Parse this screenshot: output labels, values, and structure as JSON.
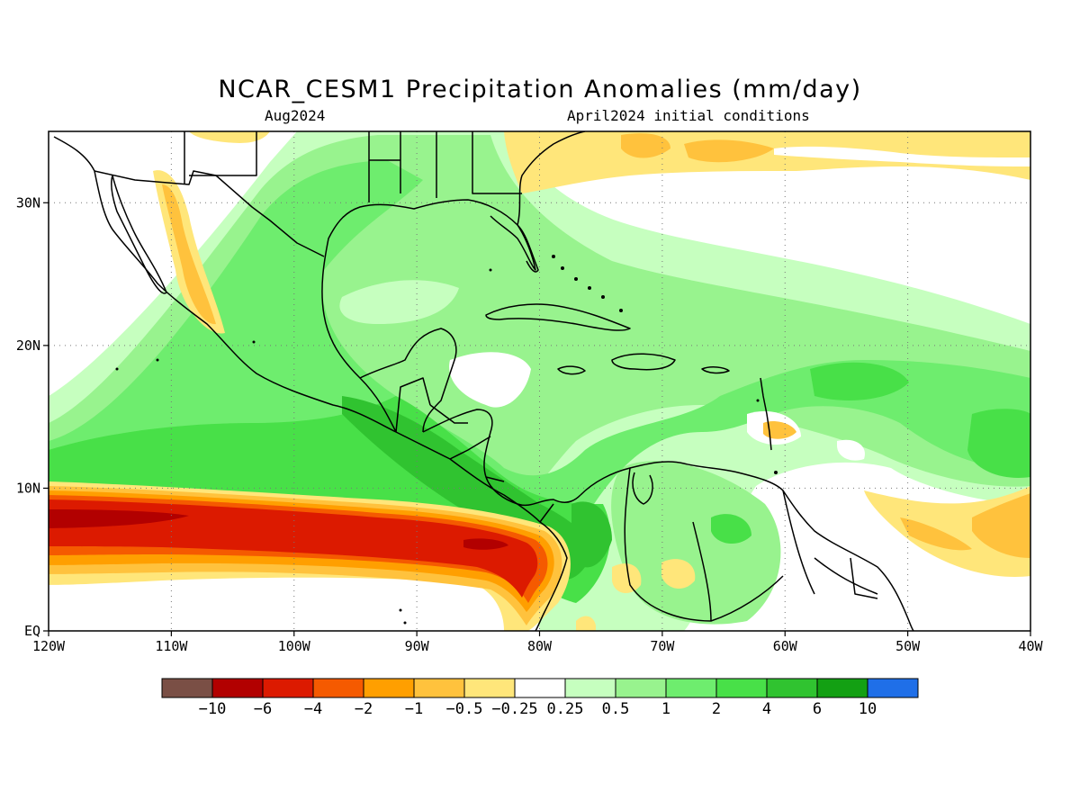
{
  "title": "NCAR_CESM1 Precipitation Anomalies (mm/day)",
  "subtitle_left": "Aug2024",
  "subtitle_right": "April2024 initial conditions",
  "map": {
    "lon_range": [
      -120,
      -40
    ],
    "lat_range": [
      0,
      35
    ],
    "x_ticks": [
      {
        "lon": -120,
        "label": "120W"
      },
      {
        "lon": -110,
        "label": "110W"
      },
      {
        "lon": -100,
        "label": "100W"
      },
      {
        "lon": -90,
        "label": "90W"
      },
      {
        "lon": -80,
        "label": "80W"
      },
      {
        "lon": -70,
        "label": "70W"
      },
      {
        "lon": -60,
        "label": "60W"
      },
      {
        "lon": -50,
        "label": "50W"
      },
      {
        "lon": -40,
        "label": "40W"
      }
    ],
    "y_ticks": [
      {
        "lat": 0,
        "label": "EQ"
      },
      {
        "lat": 10,
        "label": "10N"
      },
      {
        "lat": 20,
        "label": "20N"
      },
      {
        "lat": 30,
        "label": "30N"
      }
    ],
    "grid": "dotted"
  },
  "colorbar": {
    "colors": [
      "#7a4f45",
      "#b20000",
      "#dc1a00",
      "#f55a00",
      "#ff9f00",
      "#ffc23d",
      "#ffe67a",
      "#ffffff",
      "#c6ffbf",
      "#98f38e",
      "#6eed6e",
      "#48e048",
      "#30c330",
      "#13a013",
      "#1f6fe8"
    ],
    "labels": [
      "-10",
      "-6",
      "-4",
      "-2",
      "-1",
      "-0.5",
      "-0.25",
      "0.25",
      "0.5",
      "1",
      "2",
      "4",
      "6",
      "10"
    ]
  }
}
